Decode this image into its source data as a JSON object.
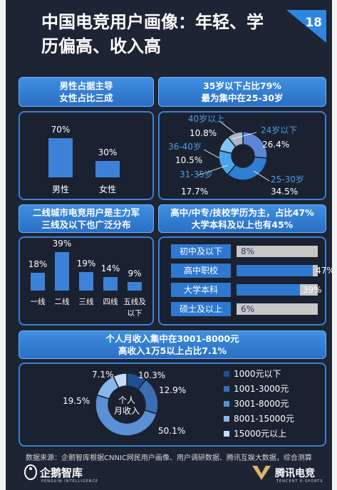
{
  "title": "中国电竞用户画像：年轻、学历偏高、收入高",
  "page_number": "18",
  "source": "数据来源：企鹅智库根据CNNIC网民用户画像、用户调研数据、腾讯互娱大数据，综合测算",
  "logos": {
    "penguin": "企鹅智库",
    "penguin_sub": "PENGUIN INTELLIGENCE",
    "tencent": "腾讯电竞",
    "tencent_sub": "TENCENT E-SPORTS"
  },
  "chart_data": [
    {
      "type": "bar",
      "header": [
        "男性占据主导",
        "女性占比三成"
      ],
      "categories": [
        "男性",
        "女性"
      ],
      "values": [
        70,
        30
      ],
      "value_labels": [
        "70%",
        "30%"
      ],
      "ylim": [
        0,
        100
      ]
    },
    {
      "type": "pie",
      "header": [
        "35岁以下占比79%",
        "最为集中在25-30岁"
      ],
      "labels": [
        "24岁以下",
        "25-30岁",
        "31-35岁",
        "36-40岁",
        "40岁以上"
      ],
      "values": [
        26.4,
        34.5,
        17.7,
        10.5,
        10.8
      ],
      "value_labels": [
        "26.4%",
        "34.5%",
        "17.7%",
        "10.5%",
        "10.8%"
      ],
      "colors": [
        "#5d86d6",
        "#2f7fd3",
        "#4ba3e8",
        "#86c4f2",
        "#a9b7c6"
      ]
    },
    {
      "type": "bar",
      "header": [
        "二线城市电竞用户是主力军",
        "三线及以下也广泛分布"
      ],
      "categories": [
        "一线",
        "二线",
        "三线",
        "四线",
        "五线及以下"
      ],
      "category_lines": [
        [
          "一线"
        ],
        [
          "二线"
        ],
        [
          "三线"
        ],
        [
          "四线"
        ],
        [
          "五线及",
          "以下"
        ]
      ],
      "values": [
        18,
        39,
        19,
        14,
        9
      ],
      "value_labels": [
        "18%",
        "39%",
        "19%",
        "14%",
        "9%"
      ],
      "ylim": [
        0,
        45
      ]
    },
    {
      "type": "bar",
      "orientation": "horizontal",
      "header": [
        "高中/中专/技校学历为主，占比47%",
        "大学本科及以上也有45%"
      ],
      "categories": [
        "初中及以下",
        "高中职校",
        "大学本科",
        "硕士及以上"
      ],
      "values": [
        8,
        47,
        39,
        6
      ],
      "value_labels": [
        "8%",
        "47%",
        "39%",
        "6%"
      ],
      "xlim": [
        0,
        100
      ]
    },
    {
      "type": "pie",
      "header": [
        "个人月收入集中在3001-8000元",
        "高收入1万5以上占比7.1%"
      ],
      "center_label": [
        "个人",
        "月收入"
      ],
      "labels": [
        "1000元以下",
        "1001-3000元",
        "3001-8000元",
        "8001-15000元",
        "15000元以上"
      ],
      "values": [
        10.3,
        19.5,
        50.1,
        12.9,
        7.1
      ],
      "value_labels": [
        "10.3%",
        "19.5%",
        "50.1%",
        "12.9%",
        "7.1%"
      ],
      "colors": [
        "#1f4f8f",
        "#3b6db3",
        "#5b8fd6",
        "#89b6ea",
        "#c5dcf6"
      ]
    }
  ]
}
